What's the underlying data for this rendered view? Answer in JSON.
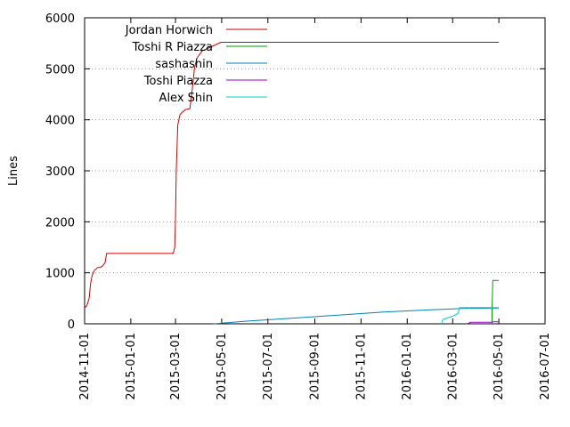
{
  "chart_data": {
    "type": "line",
    "title": "",
    "xlabel": "",
    "ylabel": "Lines",
    "x_is_date": true,
    "xlim": [
      "2014-11-01",
      "2016-07-01"
    ],
    "ylim": [
      0,
      6000
    ],
    "x_ticks": [
      "2014-11-01",
      "2015-01-01",
      "2015-03-01",
      "2015-05-01",
      "2015-07-01",
      "2015-09-01",
      "2015-11-01",
      "2016-01-01",
      "2016-03-01",
      "2016-05-01",
      "2016-07-01"
    ],
    "y_ticks": [
      0,
      1000,
      2000,
      3000,
      4000,
      5000,
      6000
    ],
    "grid": true,
    "legend": "top-left",
    "series": [
      {
        "name": "Jordan Horwich",
        "color": "#cc0000",
        "points": [
          [
            "2014-11-01",
            310
          ],
          [
            "2014-11-04",
            360
          ],
          [
            "2014-11-07",
            500
          ],
          [
            "2014-11-09",
            800
          ],
          [
            "2014-11-11",
            950
          ],
          [
            "2014-11-14",
            1050
          ],
          [
            "2014-11-18",
            1100
          ],
          [
            "2014-11-24",
            1120
          ],
          [
            "2014-11-28",
            1200
          ],
          [
            "2014-11-30",
            1380
          ],
          [
            "2015-02-26",
            1380
          ],
          [
            "2015-02-28",
            1500
          ],
          [
            "2015-03-01",
            2000
          ],
          [
            "2015-03-02",
            3000
          ],
          [
            "2015-03-04",
            3900
          ],
          [
            "2015-03-07",
            4100
          ],
          [
            "2015-03-10",
            4150
          ],
          [
            "2015-03-14",
            4200
          ],
          [
            "2015-03-20",
            4220
          ],
          [
            "2015-03-24",
            4700
          ],
          [
            "2015-03-26",
            5000
          ],
          [
            "2015-03-29",
            5200
          ],
          [
            "2015-04-05",
            5350
          ],
          [
            "2015-04-20",
            5450
          ],
          [
            "2015-04-30",
            5520
          ],
          [
            "2016-05-01",
            5520
          ]
        ]
      },
      {
        "name": "Toshi R Piazza",
        "color": "#009900",
        "points": [
          [
            "2016-04-22",
            0
          ],
          [
            "2016-04-22",
            300
          ],
          [
            "2016-04-23",
            850
          ],
          [
            "2016-05-01",
            850
          ]
        ]
      },
      {
        "name": "sashashin",
        "color": "#0080bb",
        "points": [
          [
            "2015-04-20",
            0
          ],
          [
            "2015-06-01",
            50
          ],
          [
            "2015-08-01",
            110
          ],
          [
            "2015-10-01",
            170
          ],
          [
            "2015-12-01",
            230
          ],
          [
            "2016-02-01",
            275
          ],
          [
            "2016-03-15",
            300
          ],
          [
            "2016-05-01",
            310
          ]
        ]
      },
      {
        "name": "Toshi Piazza",
        "color": "#9900cc",
        "points": [
          [
            "2016-03-20",
            0
          ],
          [
            "2016-03-25",
            30
          ],
          [
            "2016-04-22",
            30
          ],
          [
            "2016-04-23",
            40
          ],
          [
            "2016-05-01",
            40
          ]
        ]
      },
      {
        "name": "Alex Shin",
        "color": "#00cccc",
        "points": [
          [
            "2016-02-15",
            0
          ],
          [
            "2016-02-17",
            80
          ],
          [
            "2016-03-01",
            150
          ],
          [
            "2016-03-08",
            200
          ],
          [
            "2016-03-10",
            320
          ],
          [
            "2016-05-01",
            320
          ]
        ]
      }
    ]
  }
}
